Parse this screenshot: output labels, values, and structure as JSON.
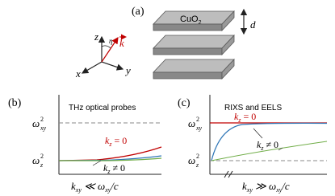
{
  "panel_a": {
    "label": "(a)",
    "layer": {
      "base": "CuO",
      "sub": "2"
    },
    "spacing": "d",
    "axes": {
      "z": "z",
      "y": "y",
      "x": "x",
      "angle": "η",
      "wavevector": "k"
    }
  },
  "panel_b": {
    "label": "(b)",
    "title": "THz optical probes",
    "y_labels": [
      {
        "base": "ω",
        "sup": "2",
        "sub": "xy"
      },
      {
        "base": "ω",
        "sup": "2",
        "sub": "z"
      }
    ],
    "curve_labels": [
      {
        "base": "k",
        "sub": "z",
        "rel": " = 0"
      },
      {
        "base": "k",
        "sub": "z",
        "rel": " ≠ 0"
      }
    ],
    "x_label": {
      "base": "k",
      "sub": "xy",
      "rel": " ≪ ω",
      "sub2": "xy",
      "tail": "/c"
    }
  },
  "panel_c": {
    "label": "(c)",
    "title": "RIXS and EELS",
    "y_labels": [
      {
        "base": "ω",
        "sup": "2",
        "sub": "xy"
      },
      {
        "base": "ω",
        "sup": "2",
        "sub": "z"
      }
    ],
    "curve_labels": [
      {
        "base": "k",
        "sub": "z",
        "rel": " = 0"
      },
      {
        "base": "k",
        "sub": "z",
        "rel": " ≠ 0"
      }
    ],
    "x_label": {
      "base": "k",
      "sub": "xy",
      "rel": " ≫ ω",
      "sub2": "xy",
      "tail": "/c"
    }
  }
}
